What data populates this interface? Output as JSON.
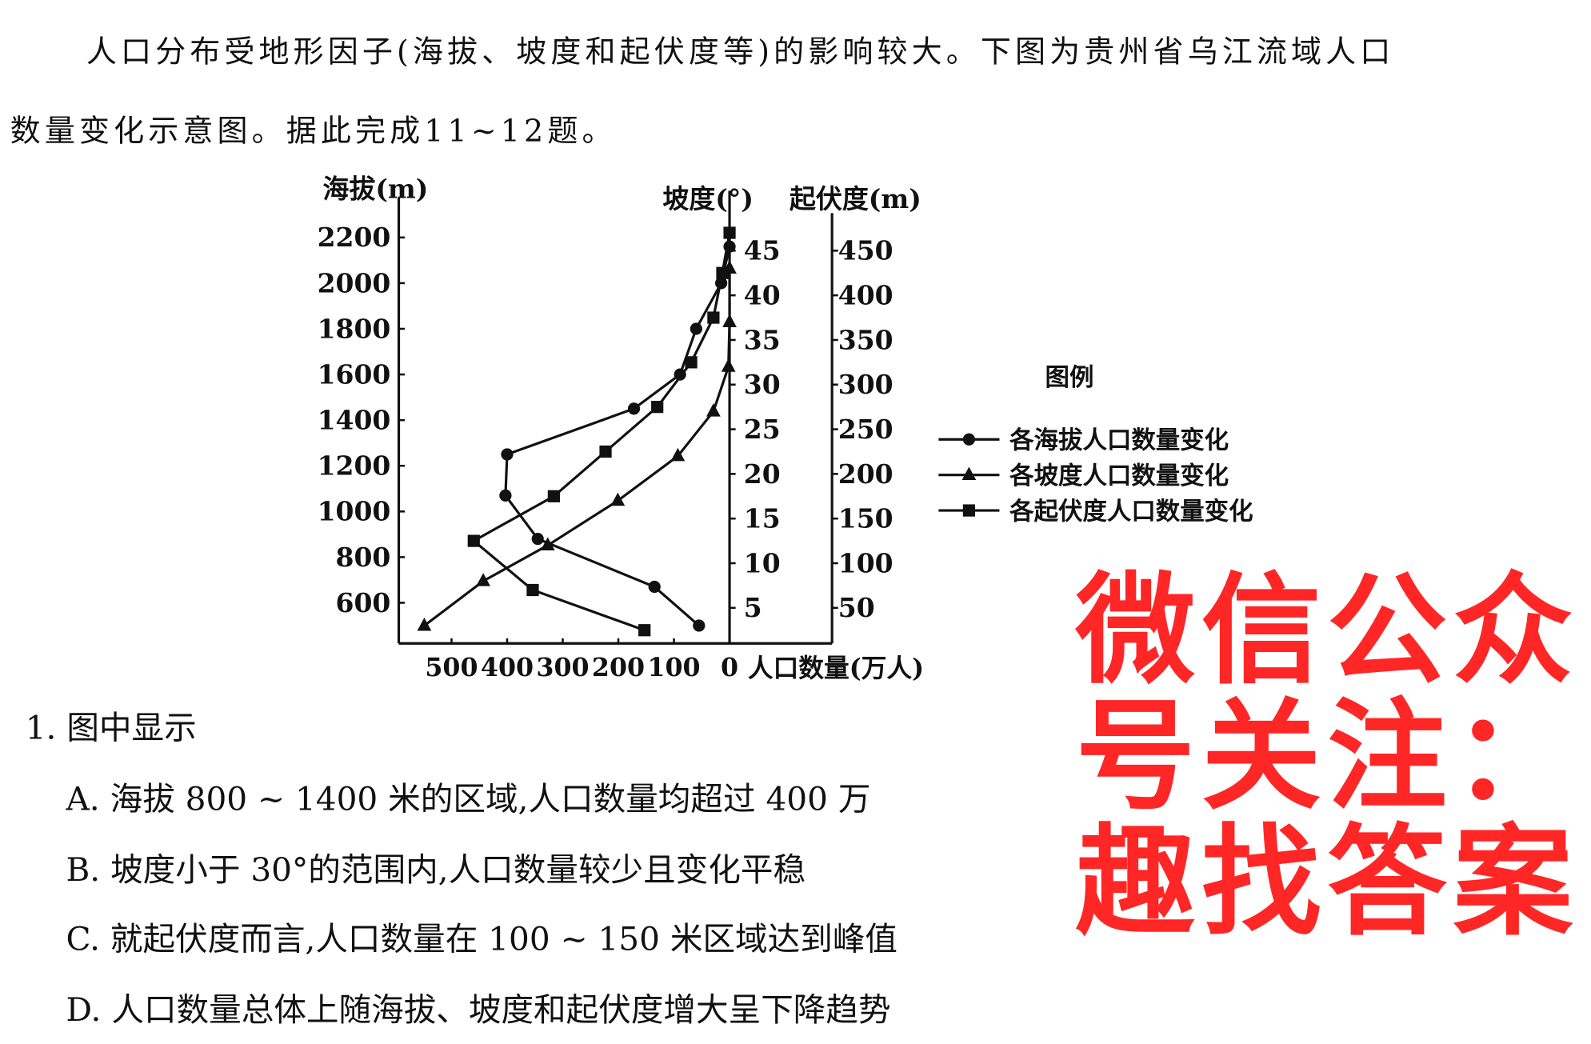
{
  "intro": {
    "line1": "人口分布受地形因子(海拔、坡度和起伏度等)的影响较大。下图为贵州省乌江流域人口",
    "line2": "数量变化示意图。据此完成11~12题。"
  },
  "watermark": "微信公众号关注：趣找答案",
  "chart_data": {
    "type": "line",
    "title": "",
    "xlabel": "人口数量(万人)",
    "xlim": [
      600,
      0
    ],
    "x_ticks": [
      "500",
      "400",
      "300",
      "200",
      "100",
      "0"
    ],
    "axes": {
      "altitude": {
        "label": "海拔(m)",
        "ticks": [
          "2200",
          "2000",
          "1800",
          "1600",
          "1400",
          "1200",
          "1000",
          "800",
          "600"
        ]
      },
      "slope": {
        "label": "坡度(°)",
        "ticks": [
          "45",
          "40",
          "35",
          "30",
          "25",
          "20",
          "15",
          "10",
          "5"
        ]
      },
      "relief": {
        "label": "起伏度(m)",
        "ticks": [
          "450",
          "400",
          "350",
          "300",
          "250",
          "200",
          "150",
          "100",
          "50"
        ]
      }
    },
    "legend": {
      "title": "图例",
      "placement": "right"
    },
    "series": [
      {
        "name": "各海拔人口数量变化",
        "marker": "circle",
        "axis": "altitude",
        "points": [
          [
            55,
            500
          ],
          [
            135,
            670
          ],
          [
            345,
            880
          ],
          [
            403,
            1070
          ],
          [
            400,
            1250
          ],
          [
            172,
            1450
          ],
          [
            89,
            1600
          ],
          [
            60,
            1800
          ],
          [
            15,
            2000
          ],
          [
            0,
            2160
          ]
        ]
      },
      {
        "name": "各坡度人口数量变化",
        "marker": "triangle",
        "axis": "slope",
        "points": [
          [
            549,
            3
          ],
          [
            443,
            8
          ],
          [
            327,
            12
          ],
          [
            201,
            17
          ],
          [
            93,
            22
          ],
          [
            29,
            27
          ],
          [
            2,
            32
          ],
          [
            0,
            37
          ],
          [
            0,
            43
          ]
        ]
      },
      {
        "name": "各起伏度人口数量变化",
        "marker": "square",
        "axis": "relief",
        "points": [
          [
            153,
            25
          ],
          [
            354,
            70
          ],
          [
            460,
            125
          ],
          [
            316,
            175
          ],
          [
            223,
            225
          ],
          [
            130,
            275
          ],
          [
            69,
            325
          ],
          [
            29,
            375
          ],
          [
            13,
            425
          ],
          [
            0,
            470
          ]
        ]
      }
    ]
  },
  "question": {
    "stem": "1. 图中显示",
    "options": [
      "A. 海拔 800 ~ 1400 米的区域,人口数量均超过 400 万",
      "B. 坡度小于 30°的范围内,人口数量较少且变化平稳",
      "C. 就起伏度而言,人口数量在 100 ~ 150 米区域达到峰值",
      "D. 人口数量总体上随海拔、坡度和起伏度增大呈下降趋势"
    ]
  }
}
